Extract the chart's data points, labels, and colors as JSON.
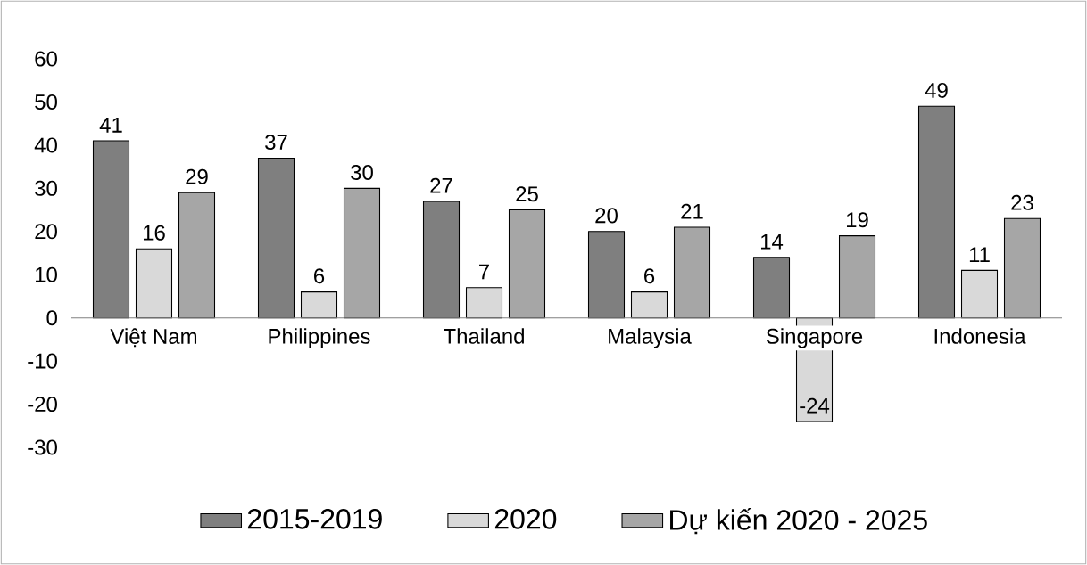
{
  "chart_data": {
    "type": "bar",
    "categories": [
      "Việt Nam",
      "Philippines",
      "Thailand",
      "Malaysia",
      "Singapore",
      "Indonesia"
    ],
    "series": [
      {
        "name": "2015-2019",
        "color": "#7f7f7f",
        "values": [
          41,
          37,
          27,
          20,
          14,
          49
        ]
      },
      {
        "name": "2020",
        "color": "#d9d9d9",
        "values": [
          16,
          6,
          7,
          6,
          -24,
          11
        ]
      },
      {
        "name": "Dự kiến 2020 - 2025",
        "color": "#a6a6a6",
        "values": [
          29,
          30,
          25,
          21,
          19,
          23
        ]
      }
    ],
    "ylim": [
      -30,
      60
    ],
    "yticks": [
      -30,
      -20,
      -10,
      0,
      10,
      20,
      30,
      40,
      50,
      60
    ],
    "data_labels": true,
    "legend": "bottom",
    "grid": false
  }
}
